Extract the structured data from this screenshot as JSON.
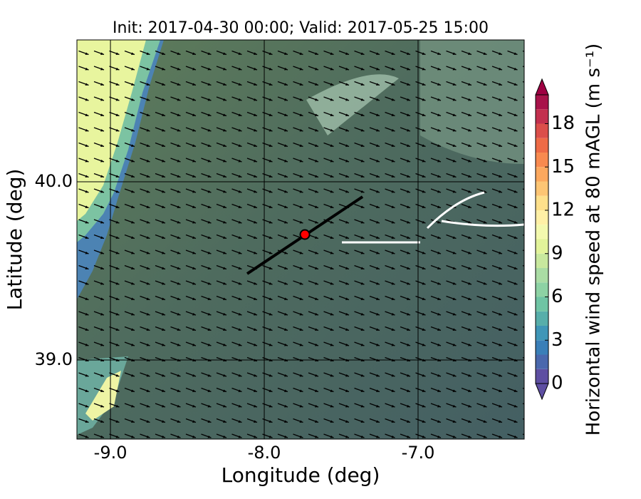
{
  "chart_data": {
    "type": "map",
    "title": "Init: 2017-04-30 00:00; Valid: 2017-05-25 15:00",
    "xlabel": "Longitude (deg)",
    "ylabel": "Latitude (deg)",
    "xlim": [
      -9.218,
      -6.31
    ],
    "ylim": [
      38.556,
      40.796
    ],
    "xticks": [
      {
        "value": -9,
        "label": "-9.0"
      },
      {
        "value": -8,
        "label": "-8.0"
      },
      {
        "value": -7,
        "label": "-7.0"
      }
    ],
    "yticks": [
      {
        "value": 39,
        "label": "39.0"
      },
      {
        "value": 40,
        "label": "40.0"
      }
    ],
    "grid": true,
    "colorbar": {
      "label": "Horizontal wind speed at 80 mAGL (m s⁻¹)",
      "lim": [
        0,
        20
      ],
      "ticks": [
        0,
        3,
        6,
        9,
        12,
        15,
        18
      ],
      "levels": [
        0,
        1,
        2,
        3,
        4,
        5,
        6,
        7,
        8,
        9,
        10,
        11,
        12,
        13,
        14,
        15,
        16,
        17,
        18,
        19,
        20
      ],
      "colors": [
        "#5e4fa2",
        "#4a68ad",
        "#3a7fb8",
        "#3f96b7",
        "#57aeaa",
        "#6fc4a4",
        "#8dd2a4",
        "#aadca4",
        "#c8e89e",
        "#e2f39a",
        "#f3f9ae",
        "#fff0a6",
        "#fee08b",
        "#fdc574",
        "#fca85e",
        "#f88a4f",
        "#ee6b46",
        "#db4e4a",
        "#c3304e",
        "#a8134a"
      ],
      "under_color": "#5e4fa2",
      "over_color": "#9e0142"
    },
    "transect": {
      "x": [
        -8.111,
        -7.361
      ],
      "y": [
        39.484,
        39.916
      ],
      "color": "#000000"
    },
    "site": {
      "x": -7.736,
      "y": 39.704,
      "color": "#ff0000"
    }
  }
}
